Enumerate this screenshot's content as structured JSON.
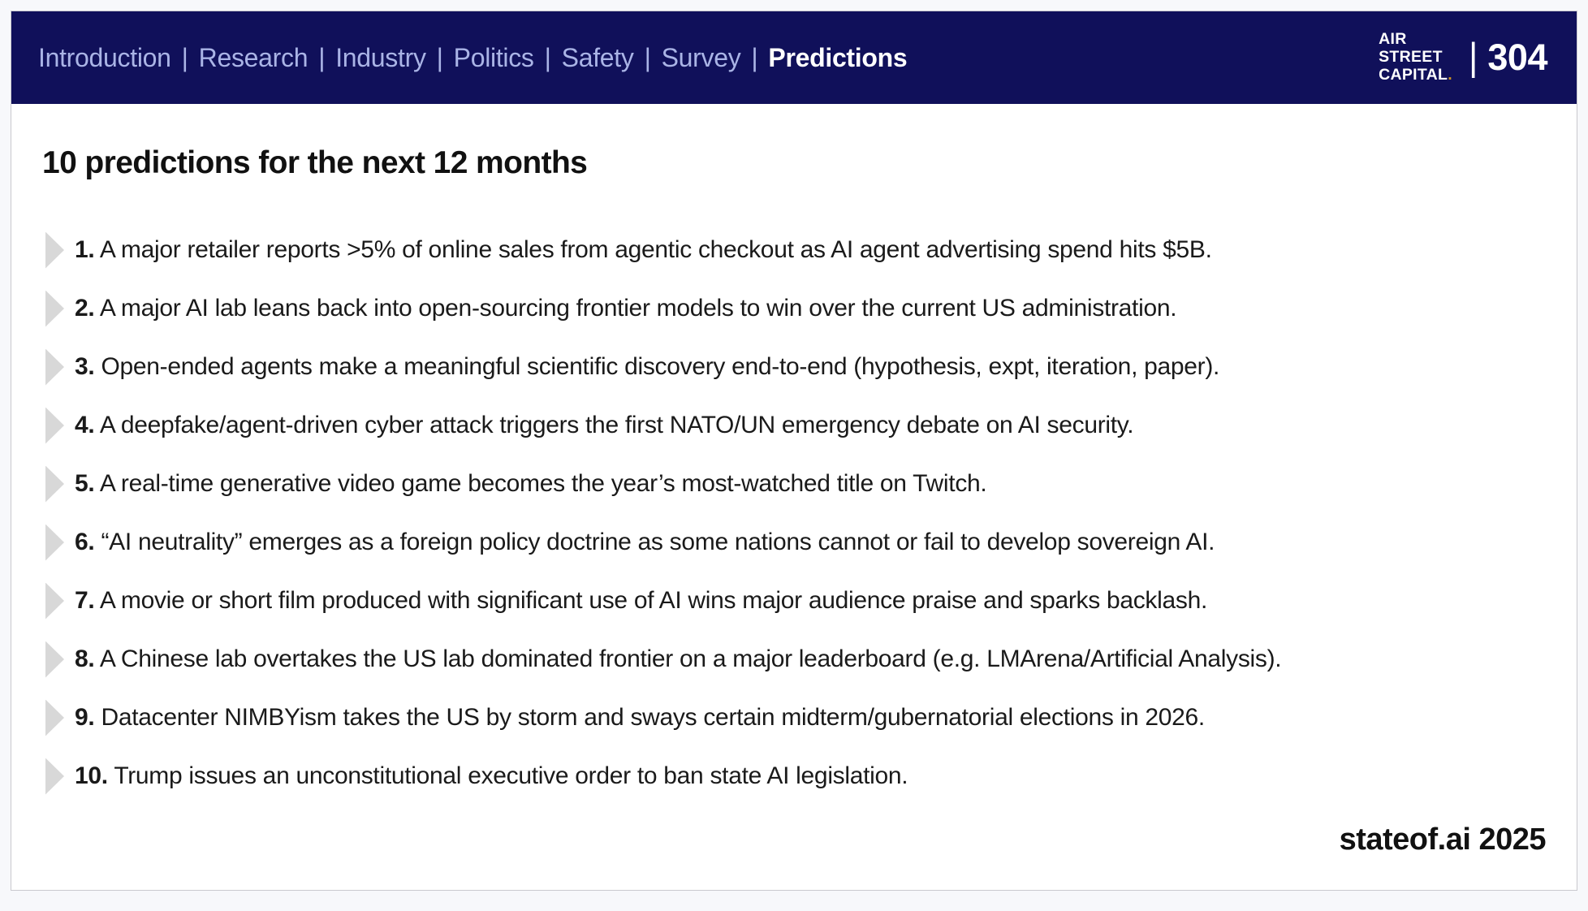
{
  "page": {
    "background_color": "#f7f8fb",
    "card_background": "#ffffff",
    "card_border_color": "#c9c9ce"
  },
  "header": {
    "background_color": "#10105a",
    "nav_link_color": "#aab4e6",
    "nav_active_color": "#ffffff",
    "nav_separator": "|",
    "nav_items": [
      {
        "label": "Introduction",
        "active": false
      },
      {
        "label": "Research",
        "active": false
      },
      {
        "label": "Industry",
        "active": false
      },
      {
        "label": "Politics",
        "active": false
      },
      {
        "label": "Safety",
        "active": false
      },
      {
        "label": "Survey",
        "active": false
      },
      {
        "label": "Predictions",
        "active": true
      }
    ],
    "logo": {
      "line1": "AIR",
      "line2": "STREET",
      "line3": "CAPITAL",
      "period": ".",
      "period_color": "#cc9421"
    },
    "page_number": {
      "separator": "|",
      "value": "304"
    }
  },
  "main": {
    "title": "10 predictions for the next 12 months",
    "bullet_color": "#d8d8d8",
    "predictions": [
      {
        "number": "1.",
        "text": "A major retailer reports >5% of online sales from agentic checkout as AI agent advertising spend hits $5B."
      },
      {
        "number": "2.",
        "text": "A major AI lab leans back into open-sourcing frontier models to win over the current US administration."
      },
      {
        "number": "3.",
        "text": "Open-ended agents make a meaningful scientific discovery end-to-end (hypothesis, expt, iteration, paper)."
      },
      {
        "number": "4.",
        "text": "A deepfake/agent-driven cyber attack triggers the first NATO/UN emergency debate on AI security."
      },
      {
        "number": "5.",
        "text": "A real-time generative video game becomes the year’s most-watched title on Twitch."
      },
      {
        "number": "6.",
        "text": "“AI neutrality” emerges as a foreign policy doctrine as some nations cannot or fail to develop sovereign AI."
      },
      {
        "number": "7.",
        "text": "A movie or short film produced with significant use of AI wins major audience praise and sparks backlash."
      },
      {
        "number": "8.",
        "text": "A Chinese lab overtakes the US lab dominated frontier on a major leaderboard (e.g. LMArena/Artificial Analysis)."
      },
      {
        "number": "9.",
        "text": "Datacenter NIMBYism takes the US by storm and sways certain midterm/gubernatorial elections in 2026."
      },
      {
        "number": "10.",
        "text": "Trump issues an unconstitutional executive order to ban state AI legislation."
      }
    ],
    "footer": "stateof.ai 2025"
  }
}
